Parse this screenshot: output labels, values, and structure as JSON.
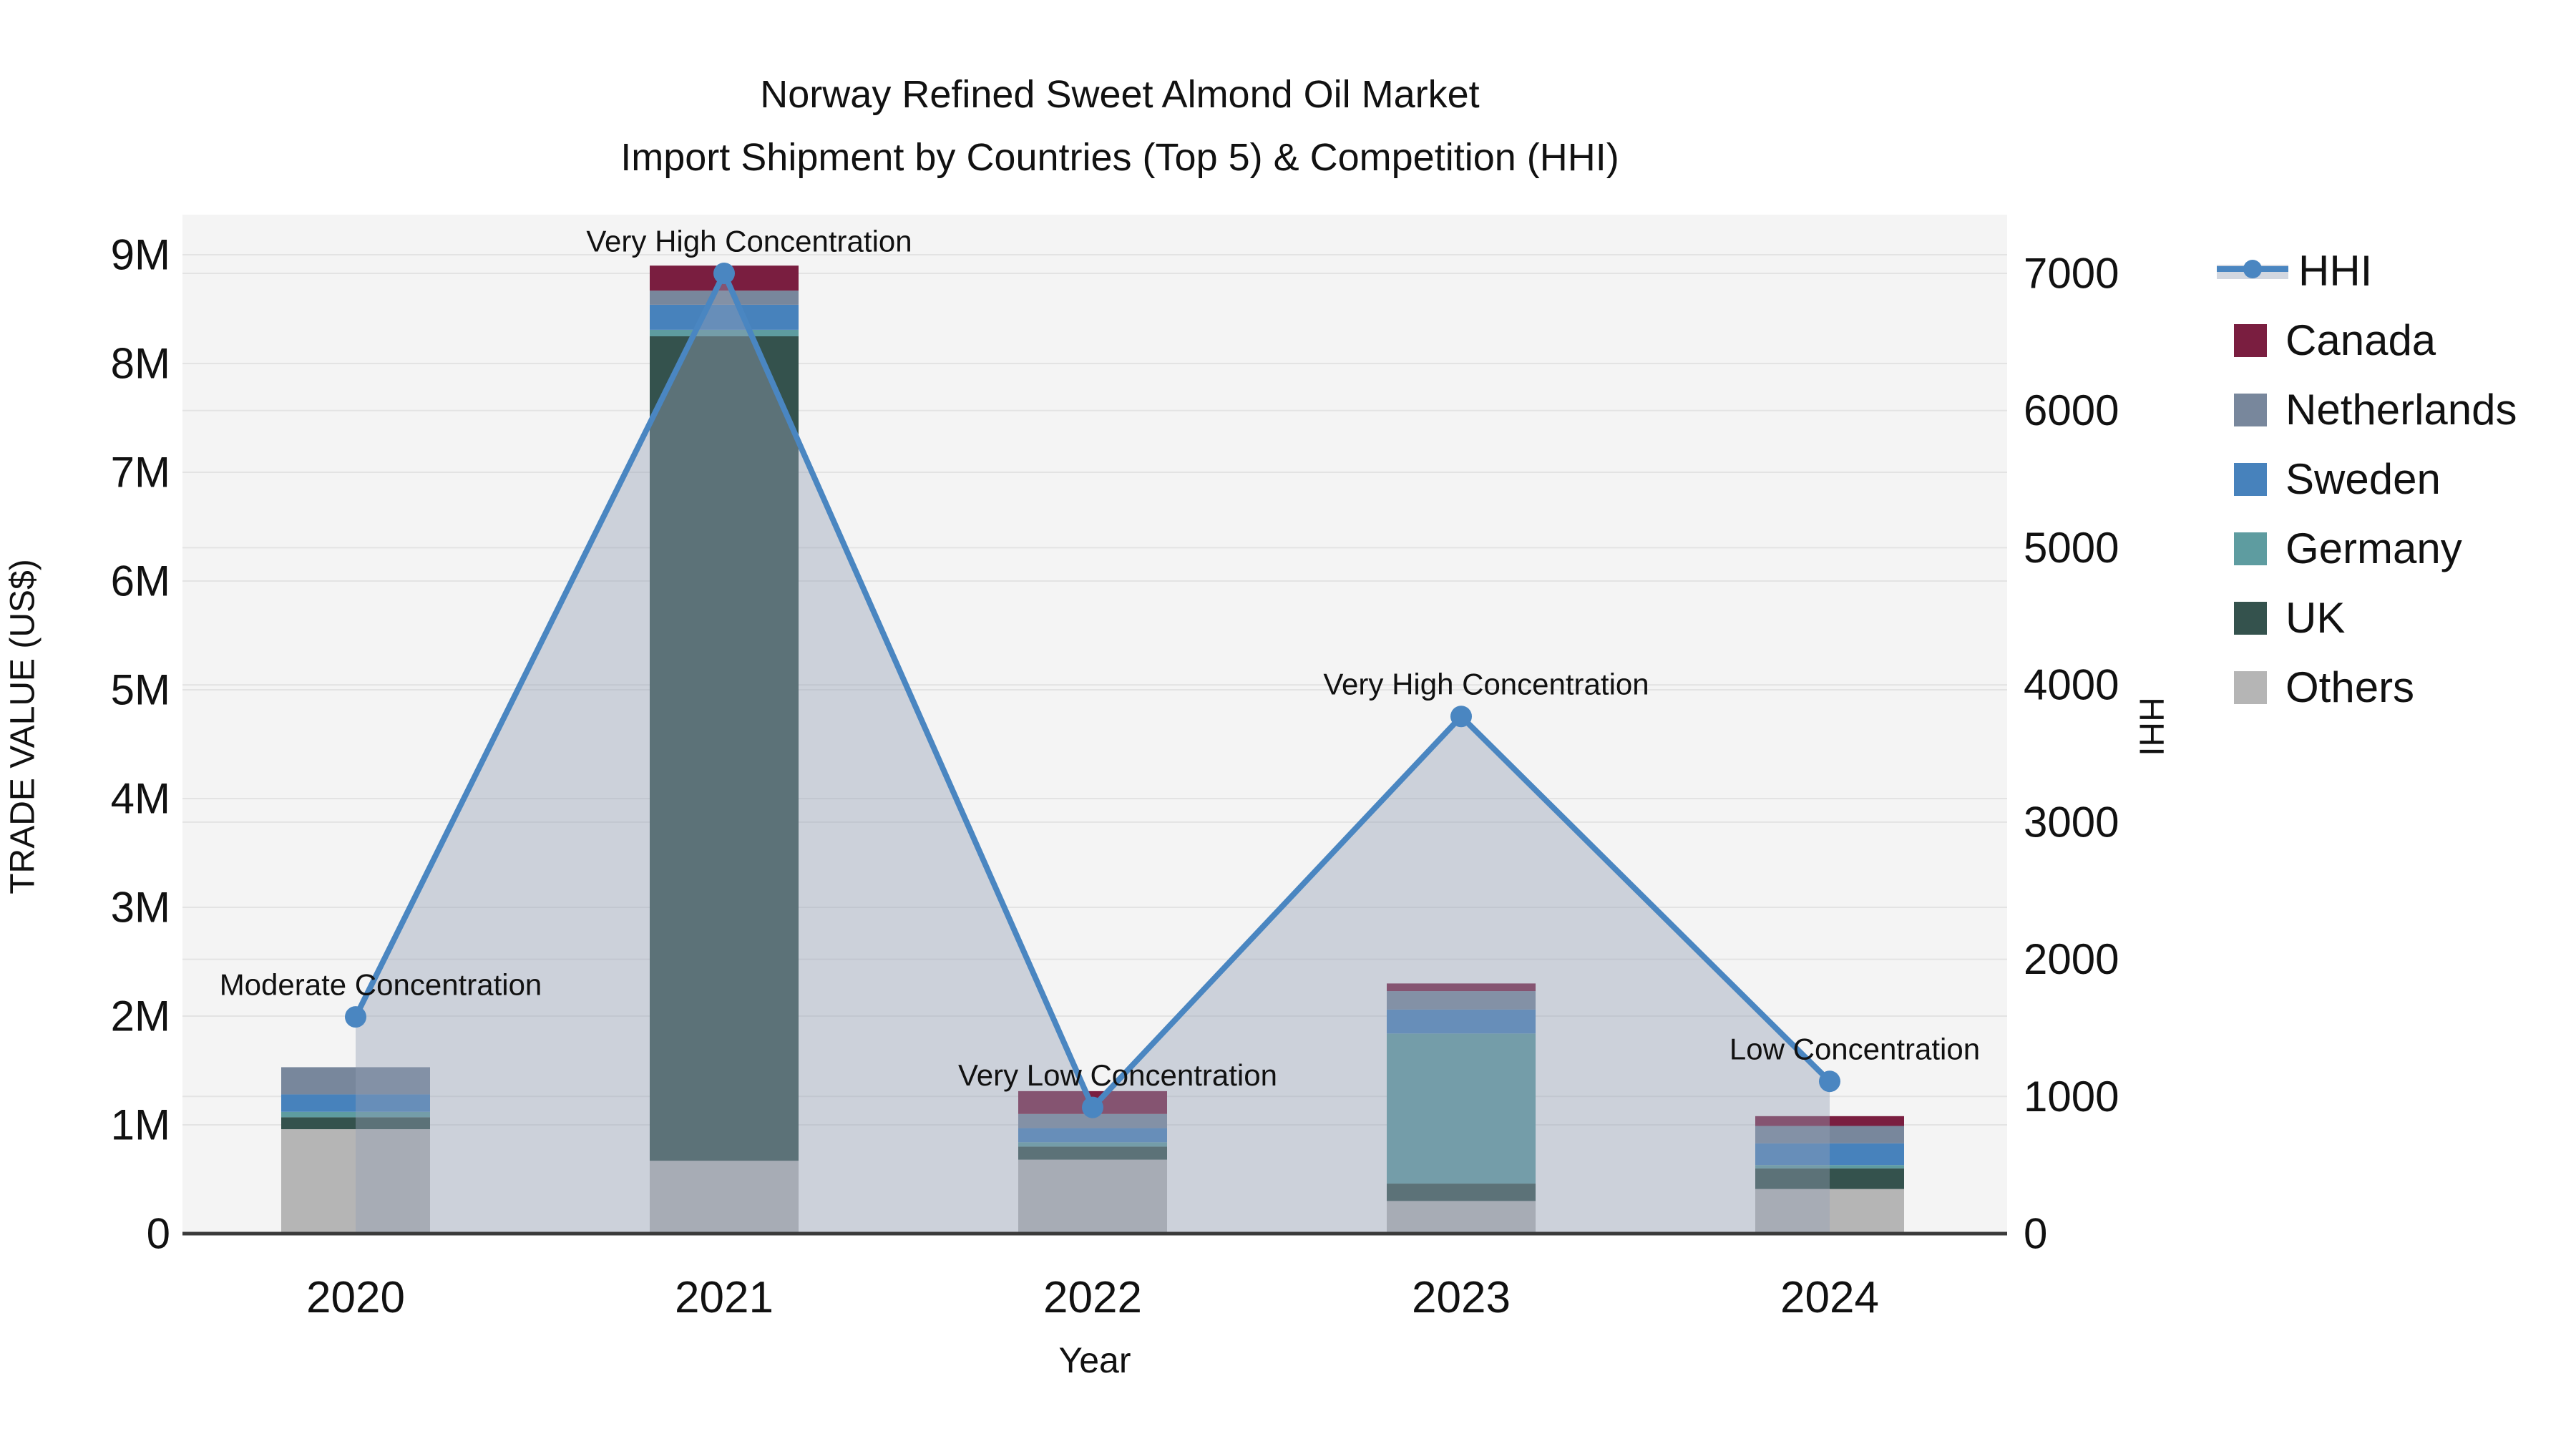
{
  "title": {
    "line1": "Norway Refined Sweet Almond Oil Market",
    "line2": "Import Shipment by Countries (Top 5) & Competition (HHI)"
  },
  "axes": {
    "left_label": "TRADE VALUE (US$)",
    "right_label": "HHI",
    "x_label": "Year",
    "left_ticks": [
      {
        "value": 0,
        "label": "0"
      },
      {
        "value": 1000000,
        "label": "1M"
      },
      {
        "value": 2000000,
        "label": "2M"
      },
      {
        "value": 3000000,
        "label": "3M"
      },
      {
        "value": 4000000,
        "label": "4M"
      },
      {
        "value": 5000000,
        "label": "5M"
      },
      {
        "value": 6000000,
        "label": "6M"
      },
      {
        "value": 7000000,
        "label": "7M"
      },
      {
        "value": 8000000,
        "label": "8M"
      },
      {
        "value": 9000000,
        "label": "9M"
      }
    ],
    "right_ticks": [
      {
        "value": 0,
        "label": "0"
      },
      {
        "value": 1000,
        "label": "1000"
      },
      {
        "value": 2000,
        "label": "2000"
      },
      {
        "value": 3000,
        "label": "3000"
      },
      {
        "value": 4000,
        "label": "4000"
      },
      {
        "value": 5000,
        "label": "5000"
      },
      {
        "value": 6000,
        "label": "6000"
      },
      {
        "value": 7000,
        "label": "7000"
      }
    ]
  },
  "legend": {
    "items": [
      {
        "label": "HHI",
        "type": "line",
        "color": "#4A86C1"
      },
      {
        "label": "Canada",
        "type": "square",
        "color": "#7A1E40"
      },
      {
        "label": "Netherlands",
        "type": "square",
        "color": "#78879C"
      },
      {
        "label": "Sweden",
        "type": "square",
        "color": "#4782BC"
      },
      {
        "label": "Germany",
        "type": "square",
        "color": "#5E9CA0"
      },
      {
        "label": "UK",
        "type": "square",
        "color": "#34524D"
      },
      {
        "label": "Others",
        "type": "square",
        "color": "#B5B5B5"
      }
    ]
  },
  "colors": {
    "plot_bg": "#F4F4F4",
    "grid": "#E3E3E3",
    "axis_line": "#3A3A3A",
    "area_fill": "rgba(147,160,180,0.42)",
    "hhi_line": "#4A86C1",
    "text": "#111111"
  },
  "chart_data": {
    "type": "combo: stacked bar (left axis) + line with area (right axis)",
    "title": "Norway Refined Sweet Almond Oil Market — Import Shipment by Countries (Top 5) & Competition (HHI)",
    "xlabel": "Year",
    "ylabel_left": "TRADE VALUE (US$)",
    "ylabel_right": "HHI",
    "ylim_left": [
      0,
      9000000
    ],
    "ylim_right": [
      0,
      7000
    ],
    "grid": true,
    "legend_position": "right",
    "categories": [
      "2020",
      "2021",
      "2022",
      "2023",
      "2024"
    ],
    "stack_order_bottom_to_top": [
      "Others",
      "UK",
      "Germany",
      "Sweden",
      "Netherlands",
      "Canada"
    ],
    "series": [
      {
        "name": "Others",
        "color": "#B5B5B5",
        "values": [
          960000,
          670000,
          680000,
          300000,
          410000
        ]
      },
      {
        "name": "UK",
        "color": "#34524D",
        "values": [
          110000,
          7580000,
          120000,
          160000,
          190000
        ]
      },
      {
        "name": "Germany",
        "color": "#5E9CA0",
        "values": [
          50000,
          60000,
          40000,
          1380000,
          30000
        ]
      },
      {
        "name": "Sweden",
        "color": "#4782BC",
        "values": [
          160000,
          230000,
          130000,
          220000,
          200000
        ]
      },
      {
        "name": "Netherlands",
        "color": "#78879C",
        "values": [
          250000,
          130000,
          130000,
          170000,
          160000
        ]
      },
      {
        "name": "Canada",
        "color": "#7A1E40",
        "values": [
          0,
          230000,
          210000,
          70000,
          90000
        ]
      }
    ],
    "bar_totals": [
      1530000,
      8900000,
      1310000,
      2300000,
      1080000
    ],
    "hhi_series": {
      "name": "HHI",
      "color": "#4A86C1",
      "values": [
        1580,
        7000,
        920,
        3770,
        1110
      ]
    },
    "annotations": [
      "Moderate Concentration",
      "Very High Concentration",
      "Very Low Concentration",
      "Very High Concentration",
      "Low Concentration"
    ]
  }
}
